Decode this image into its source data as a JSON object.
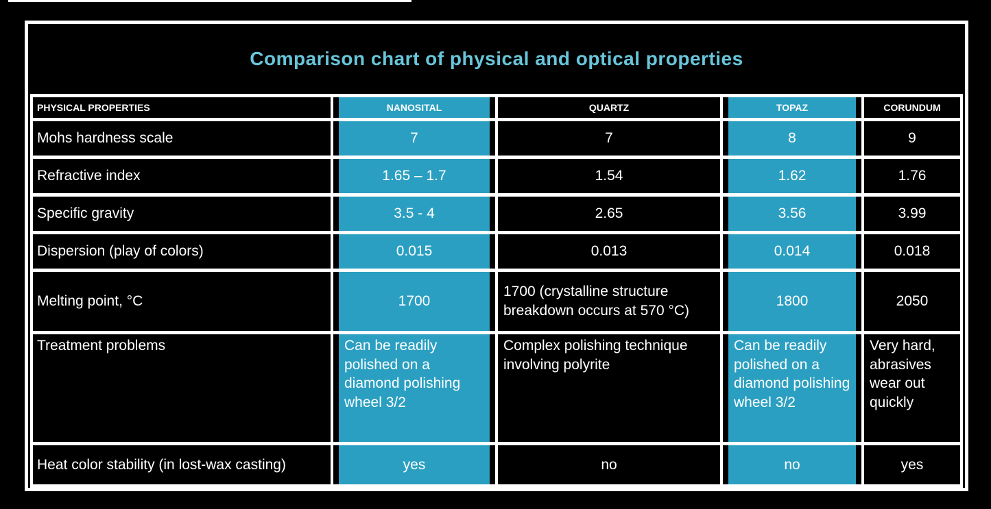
{
  "title": "Comparison chart of physical and optical properties",
  "colors": {
    "accent": "#2B9FC1",
    "title_text": "#68C5DA",
    "cell_text": "#FFFFFF",
    "grid_lines": "#FFFFFF",
    "background": "#000000"
  },
  "chart_data": {
    "type": "table",
    "title": "Comparison chart of physical and optical properties",
    "columns": [
      {
        "label": "PHYSICAL PROPERTIES",
        "highlight": false
      },
      {
        "label": "NANOSITAL",
        "highlight": true
      },
      {
        "label": "QUARTZ",
        "highlight": false
      },
      {
        "label": "TOPAZ",
        "highlight": true
      },
      {
        "label": "CORUNDUM",
        "highlight": false
      }
    ],
    "rows": [
      {
        "property": "Mohs hardness scale",
        "values": [
          "7",
          "7",
          "8",
          "9"
        ]
      },
      {
        "property": "Refractive index",
        "values": [
          "1.65 – 1.7",
          "1.54",
          "1.62",
          "1.76"
        ]
      },
      {
        "property": "Specific gravity",
        "values": [
          "3.5 - 4",
          "2.65",
          "3.56",
          "3.99"
        ]
      },
      {
        "property": "Dispersion (play of colors)",
        "values": [
          "0.015",
          "0.013",
          "0.014",
          "0.018"
        ]
      },
      {
        "property": "Melting point, °C",
        "values": [
          "1700",
          "1700 (crystalline structure breakdown occurs at 570 °C)",
          "1800",
          "2050"
        ]
      },
      {
        "property": "Treatment problems",
        "values": [
          "Can be readily polished on a diamond polishing wheel 3/2",
          "Complex polishing technique involving polyrite",
          "Can be readily polished on a diamond polishing wheel 3/2",
          "Very hard, abrasives wear out quickly"
        ]
      },
      {
        "property": "Heat color stability (in lost-wax casting)",
        "values": [
          "yes",
          "no",
          "no",
          "yes"
        ]
      }
    ]
  }
}
